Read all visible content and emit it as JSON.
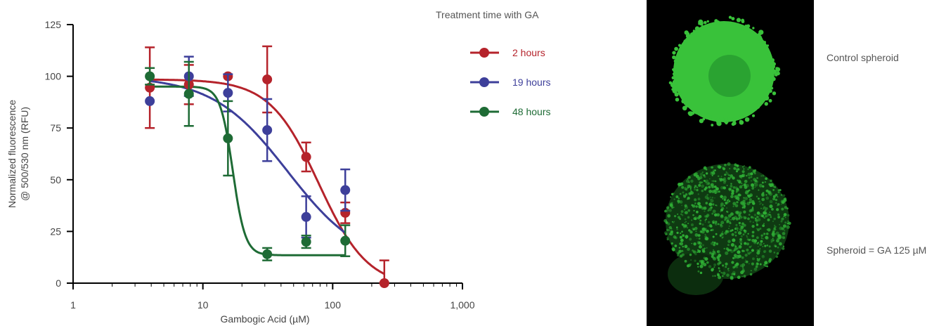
{
  "chart_data": {
    "type": "scatter",
    "xlabel": "Gambogic Acid (µM)",
    "ylabel": [
      "Normalized fluorescence",
      "@ 500/530 nm (RFU)"
    ],
    "xscale": "log",
    "xlim": [
      1,
      1000
    ],
    "ylim": [
      0,
      125
    ],
    "x_ticks": [
      1,
      10,
      100,
      1000
    ],
    "x_tick_labels": [
      "1",
      "10",
      "100",
      "1,000"
    ],
    "y_ticks": [
      0,
      25,
      50,
      75,
      100,
      125
    ],
    "y_tick_labels": [
      "0",
      "25",
      "50",
      "75",
      "100",
      "125"
    ],
    "legend_title": "Treatment time with GA",
    "legend_position": "top-right",
    "grid": false,
    "series": [
      {
        "name": "2 hours",
        "color": "#b5232b",
        "x": [
          3.9,
          7.8,
          15.6,
          31.3,
          62.5,
          125,
          250
        ],
        "y": [
          94.5,
          96,
          100,
          98.5,
          61,
          34,
          0
        ],
        "err": [
          19.5,
          9.5,
          0,
          16,
          7,
          5,
          11
        ],
        "fit": {
          "top": 98.5,
          "bottom": -2,
          "ic50": 78,
          "hill": 2.3
        }
      },
      {
        "name": "19 hours",
        "color": "#3d3f9a",
        "x": [
          3.9,
          7.8,
          15.6,
          31.3,
          62.5,
          125
        ],
        "y": [
          88,
          100,
          92,
          74,
          32,
          45
        ],
        "err": [
          0,
          9.5,
          9,
          15,
          10,
          10
        ],
        "fit": {
          "top": 100,
          "bottom": 8,
          "ic50": 45,
          "hill": 1.5
        }
      },
      {
        "name": "48 hours",
        "color": "#1e6b35",
        "x": [
          3.9,
          7.8,
          15.6,
          31.3,
          62.5,
          125
        ],
        "y": [
          100,
          91.5,
          70,
          14,
          20,
          20.5
        ],
        "err": [
          4,
          15.5,
          18,
          3,
          3,
          7.5
        ],
        "fit": {
          "top": 95,
          "bottom": 13.5,
          "ic50": 17,
          "hill": 9
        }
      }
    ]
  },
  "images": {
    "top_label": "Control spheroid",
    "bottom_label": "Spheroid = GA 125 µM",
    "top_color": "#39c23a",
    "bottom_color": "#2fae35"
  }
}
